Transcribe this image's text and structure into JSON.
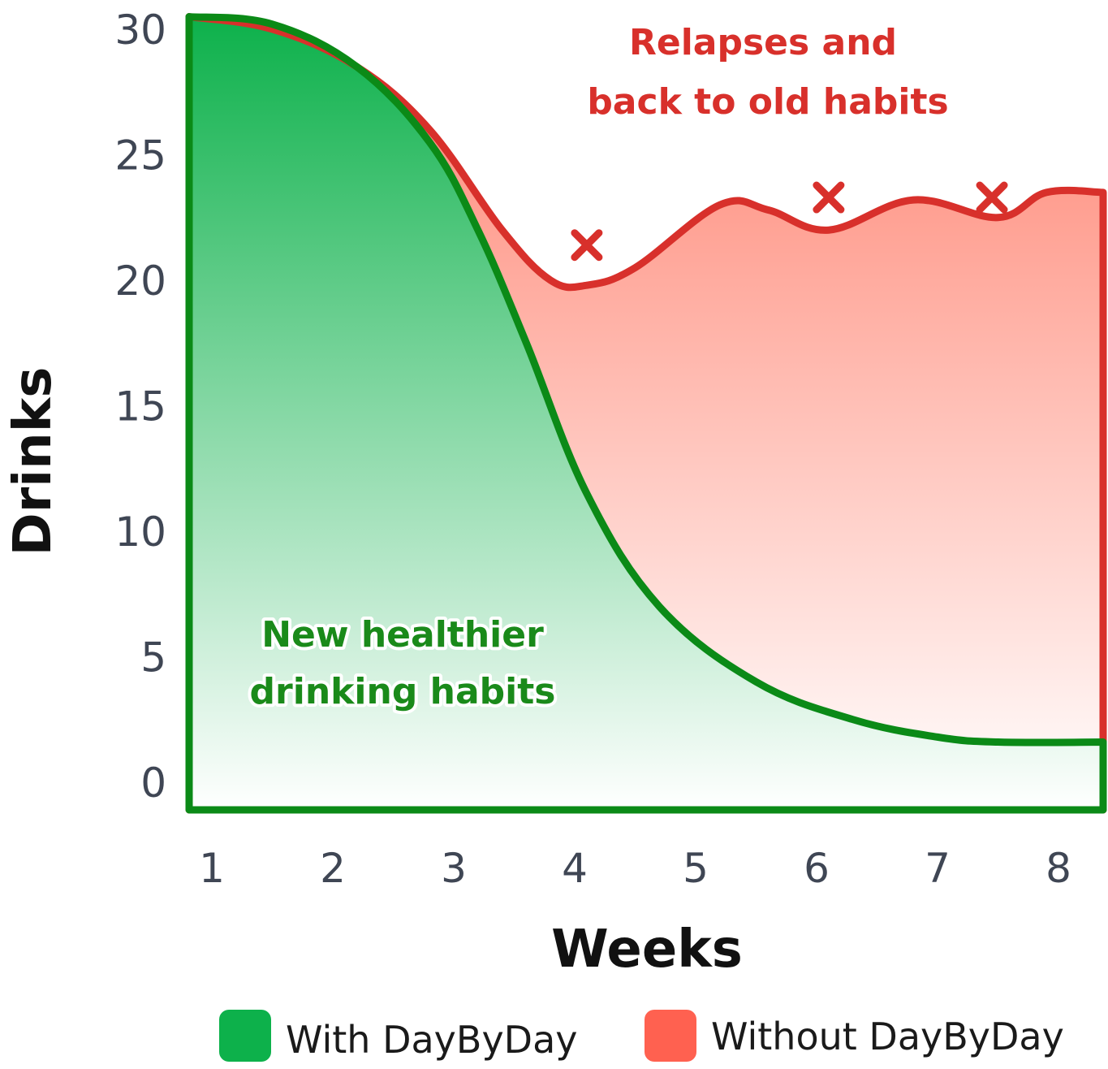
{
  "chart_data": {
    "type": "area",
    "title": "",
    "xlabel": "Weeks",
    "ylabel": "Drinks",
    "x_ticks": [
      "1",
      "2",
      "3",
      "4",
      "5",
      "6",
      "7",
      "8"
    ],
    "y_ticks": [
      "0",
      "5",
      "10",
      "15",
      "20",
      "25",
      "30"
    ],
    "xlim": [
      1,
      8
    ],
    "ylim": [
      0,
      30
    ],
    "grid": false,
    "legend": "bottom",
    "series": [
      {
        "name": "Without DayByDay",
        "color": "#ff6150",
        "line_color": "#d8302b",
        "x": [
          0.85,
          1.5,
          2.2,
          2.8,
          3.4,
          3.8,
          4.1,
          4.5,
          5.2,
          5.6,
          6.1,
          6.8,
          7.5,
          7.9,
          8.35
        ],
        "y": [
          30.5,
          30.0,
          28.5,
          26.0,
          22.0,
          20.0,
          19.8,
          20.5,
          23.0,
          22.8,
          22.0,
          23.2,
          22.5,
          23.5,
          23.5
        ]
      },
      {
        "name": "With DayByDay",
        "color": "#0db14b",
        "line_color": "#0b8a17",
        "x": [
          0.85,
          1.5,
          2.2,
          2.8,
          3.2,
          3.6,
          4.1,
          4.7,
          5.5,
          6.3,
          7.0,
          7.5,
          8.35
        ],
        "y": [
          30.5,
          30.2,
          28.5,
          25.5,
          22.0,
          17.5,
          11.5,
          7.0,
          4.0,
          2.5,
          1.8,
          1.6,
          1.6
        ]
      }
    ],
    "annotations": [
      {
        "id": "relapse",
        "lines": [
          "Relapses and",
          "back to old habits"
        ]
      },
      {
        "id": "healthy",
        "lines": [
          "New healthier",
          "drinking habits"
        ]
      }
    ],
    "markers": [
      {
        "x": 4.1,
        "y": 21.4,
        "symbol": "x"
      },
      {
        "x": 6.1,
        "y": 23.3,
        "symbol": "x"
      },
      {
        "x": 7.45,
        "y": 23.3,
        "symbol": "x"
      }
    ]
  }
}
